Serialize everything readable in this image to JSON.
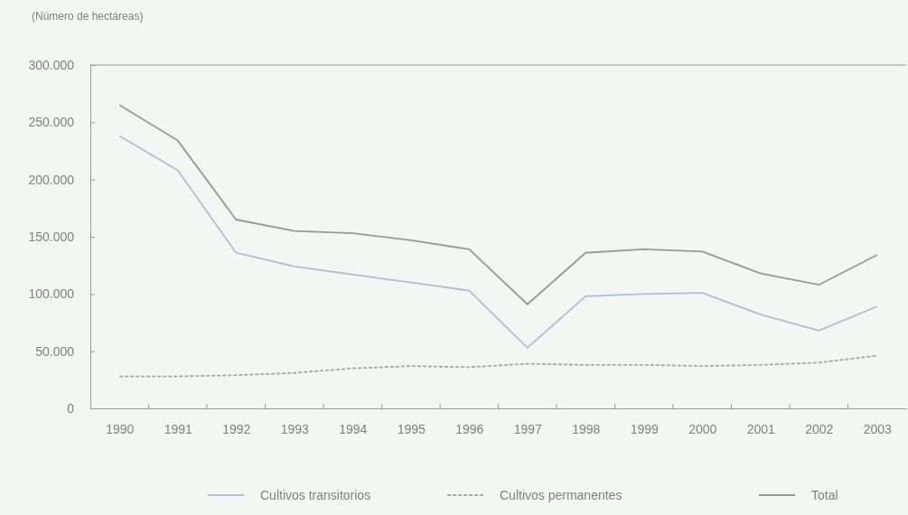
{
  "chart_data": {
    "type": "line",
    "ylabel": "(Número de hectáreas)",
    "categories": [
      "1990",
      "1991",
      "1992",
      "1993",
      "1994",
      "1995",
      "1996",
      "1997",
      "1998",
      "1999",
      "2000",
      "2001",
      "2002",
      "2003"
    ],
    "series": [
      {
        "name": "Cultivos transitorios",
        "color": "#b3bbd9",
        "line_style": "solid",
        "values": [
          238000,
          208000,
          136000,
          124000,
          117000,
          110000,
          103000,
          53000,
          98000,
          100000,
          101000,
          82000,
          68000,
          89000
        ]
      },
      {
        "name": "Cultivos permanentes",
        "color": "#a8a8a8",
        "line_style": "dashed",
        "values": [
          28000,
          28000,
          29000,
          31000,
          35000,
          37000,
          36000,
          39000,
          38000,
          38000,
          37000,
          38000,
          40000,
          46000
        ]
      },
      {
        "name": "Total",
        "color": "#999999",
        "line_style": "solid",
        "values": [
          265000,
          234000,
          165000,
          155000,
          153000,
          147000,
          139000,
          91000,
          136000,
          139000,
          137000,
          118000,
          108000,
          134000
        ]
      }
    ],
    "ylim": [
      0,
      300000
    ],
    "yticks": [
      {
        "value": 0,
        "label": "0"
      },
      {
        "value": 50000,
        "label": "50.000"
      },
      {
        "value": 100000,
        "label": "100.000"
      },
      {
        "value": 150000,
        "label": "150.000"
      },
      {
        "value": 200000,
        "label": "200.000"
      },
      {
        "value": 250000,
        "label": "250.000"
      },
      {
        "value": 300000,
        "label": "300.000"
      }
    ],
    "grid": false,
    "legend": "bottom",
    "marker": "none"
  }
}
